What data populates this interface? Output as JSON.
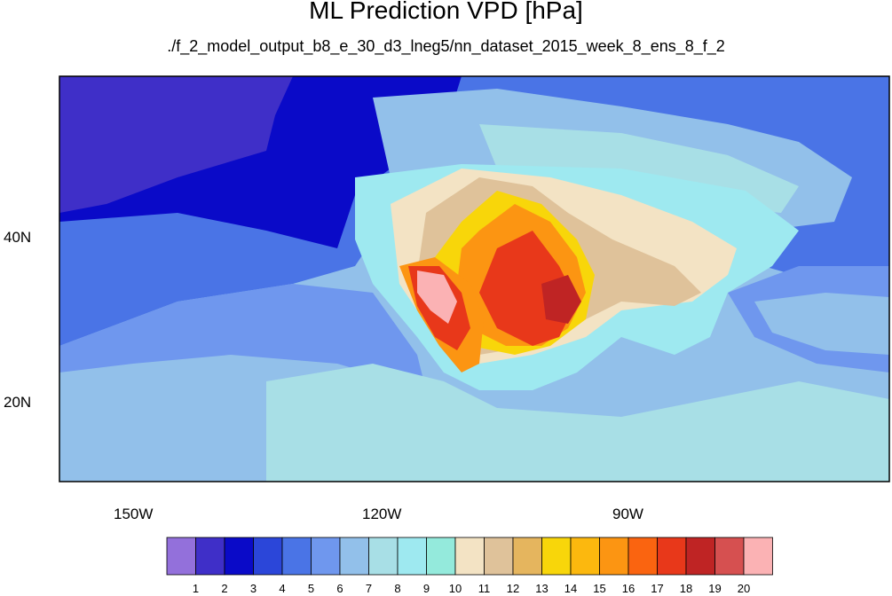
{
  "figure": {
    "title": "ML Prediction VPD [hPa]",
    "subtitle": "./f_2_model_output_b8_e_30_d3_lneg5/nn_dataset_2015_week_8_ens_8_f_2"
  },
  "axes": {
    "x_ticks": [
      "150W",
      "120W",
      "90W"
    ],
    "y_ticks": [
      "40N",
      "20N"
    ]
  },
  "colorbar": {
    "labels": [
      "1",
      "2",
      "3",
      "4",
      "5",
      "6",
      "7",
      "8",
      "9",
      "10",
      "11",
      "12",
      "13",
      "14",
      "15",
      "16",
      "17",
      "18",
      "19",
      "20"
    ],
    "colors": [
      "#9370db",
      "#3f2fc8",
      "#0a0ac8",
      "#2b46d9",
      "#4a74e6",
      "#6f97ee",
      "#92c0ea",
      "#a8dfe6",
      "#9ee9f0",
      "#94eadc",
      "#f3e3c4",
      "#dfc29a",
      "#e5b55e",
      "#f8d60a",
      "#fcb80e",
      "#fc9512",
      "#fa6410",
      "#e8381a",
      "#bf2424",
      "#d65050",
      "#fbb2b4"
    ]
  },
  "map_colors": {
    "ocean_deep": "#3f2fc8",
    "ocean_blue": "#0a0ac8",
    "ocean_mid": "#2b46d9",
    "ocean_light": "#4a74e6",
    "ocean_pale": "#6f97ee",
    "sky": "#92c0ea",
    "aqua": "#a8dfe6",
    "cyan": "#9ee9f0",
    "tan": "#f3e3c4",
    "brown": "#dfc29a",
    "yellow": "#f8d60a",
    "orange": "#fc9512",
    "red": "#e8381a",
    "darkred": "#bf2424",
    "pink": "#fbb2b4"
  }
}
